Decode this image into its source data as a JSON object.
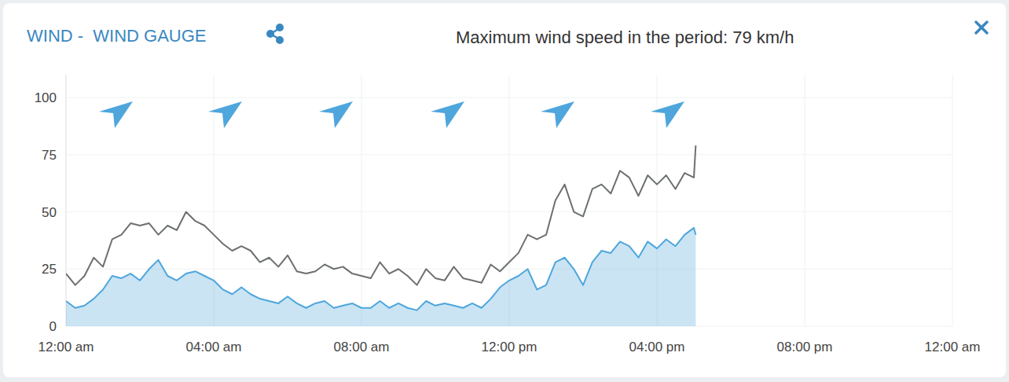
{
  "chart_data": {
    "type": "line",
    "title": "WIND -  WIND GAUGE",
    "annotation": "Maximum wind speed in the period: 79 km/h",
    "x": [
      0,
      0.25,
      0.5,
      0.75,
      1,
      1.25,
      1.5,
      1.75,
      2,
      2.25,
      2.5,
      2.75,
      3,
      3.25,
      3.5,
      3.75,
      4,
      4.25,
      4.5,
      4.75,
      5,
      5.25,
      5.5,
      5.75,
      6,
      6.25,
      6.5,
      6.75,
      7,
      7.25,
      7.5,
      7.75,
      8,
      8.25,
      8.5,
      8.75,
      9,
      9.25,
      9.5,
      9.75,
      10,
      10.25,
      10.5,
      10.75,
      11,
      11.25,
      11.5,
      11.75,
      12,
      12.25,
      12.5,
      12.75,
      13,
      13.25,
      13.5,
      13.75,
      14,
      14.25,
      14.5,
      14.75,
      15,
      15.25,
      15.5,
      15.75,
      16,
      16.25,
      16.5,
      16.75,
      17,
      17.05
    ],
    "series": [
      {
        "type": "line",
        "color": "#6d7070",
        "values": [
          23,
          18,
          22,
          30,
          26,
          38,
          40,
          45,
          44,
          45,
          40,
          44,
          42,
          50,
          46,
          44,
          40,
          36,
          33,
          35,
          33,
          28,
          30,
          26,
          31,
          24,
          23,
          24,
          27,
          25,
          26,
          23,
          22,
          21,
          28,
          23,
          25,
          22,
          18,
          25,
          21,
          20,
          26,
          21,
          20,
          19,
          27,
          24,
          28,
          32,
          40,
          38,
          40,
          55,
          62,
          50,
          48,
          60,
          62,
          58,
          68,
          65,
          57,
          66,
          62,
          66,
          60,
          67,
          65,
          79
        ]
      },
      {
        "type": "area",
        "color": "#4ea6dc",
        "values": [
          11,
          8,
          9,
          12,
          16,
          22,
          21,
          23,
          20,
          25,
          29,
          22,
          20,
          23,
          24,
          22,
          20,
          16,
          14,
          17,
          14,
          12,
          11,
          10,
          13,
          10,
          8,
          10,
          11,
          8,
          9,
          10,
          8,
          8,
          11,
          8,
          10,
          8,
          7,
          11,
          9,
          10,
          9,
          8,
          10,
          8,
          12,
          17,
          20,
          22,
          25,
          16,
          18,
          28,
          30,
          25,
          18,
          28,
          33,
          32,
          37,
          35,
          30,
          37,
          34,
          38,
          35,
          40,
          43,
          40
        ]
      }
    ],
    "xlim": [
      0,
      24
    ],
    "xticks": [
      {
        "value": 0,
        "label": "12:00 am"
      },
      {
        "value": 4,
        "label": "04:00 am"
      },
      {
        "value": 8,
        "label": "08:00 am"
      },
      {
        "value": 12,
        "label": "12:00 pm"
      },
      {
        "value": 16,
        "label": "04:00 pm"
      },
      {
        "value": 20,
        "label": "08:00 pm"
      },
      {
        "value": 24,
        "label": "12:00 am"
      }
    ],
    "ylim": [
      0,
      110
    ],
    "yticks": [
      0,
      25,
      50,
      75,
      100
    ],
    "grid": true
  }
}
